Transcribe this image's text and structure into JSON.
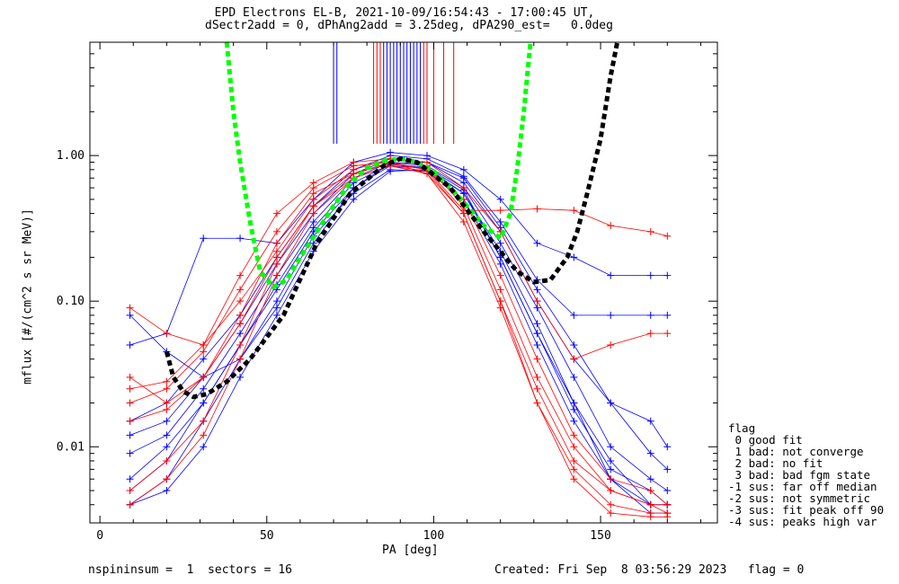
{
  "title": {
    "line1": "EPD Electrons EL-B, 2021-10-09/16:54:43 - 17:00:45 UT,",
    "line2": "dSectr2add = 0, dPhAng2add = 3.25deg, dPA290_est=   0.0deg"
  },
  "footer": {
    "left": "nspininsum =  1  sectors = 16",
    "right": "Created: Fri Sep  8 03:56:29 2023   flag = 0"
  },
  "legend": {
    "title": "flag",
    "items": [
      " 0 good fit",
      " 1 bad: not converge",
      " 2 bad: no fit",
      " 3 bad: bad fgm state",
      "-1 sus: far off median",
      "-2 sus: not symmetric",
      "-3 sus: fit peak off 90",
      "-4 sus: peaks high var"
    ]
  },
  "colors": {
    "series_a": "#0000ff",
    "series_b": "#ff0000",
    "fit_green": "#00ff00",
    "fit_black": "#000000"
  },
  "chart_data": {
    "type": "line",
    "xlabel": "PA [deg]",
    "ylabel": "mflux [#/(cm^2 s sr MeV)]",
    "xlim": [
      -3,
      185
    ],
    "ylim": [
      0.003,
      6.0
    ],
    "yscale": "log",
    "xticks": [
      0,
      50,
      100,
      150
    ],
    "xtick_labels": [
      "0",
      "50",
      "100",
      "150"
    ],
    "yticks": [
      0.01,
      0.1,
      1.0
    ],
    "ytick_labels": [
      "0.01",
      "0.10",
      "1.00"
    ],
    "grid": false,
    "pa_bins": [
      9,
      20,
      31,
      42,
      53,
      64,
      76,
      87,
      98,
      109,
      120,
      131,
      142,
      153,
      165,
      170
    ],
    "series": [
      {
        "color": "#0000ff",
        "values": [
          0.005,
          0.008,
          0.02,
          0.05,
          0.12,
          0.3,
          0.6,
          0.85,
          0.82,
          0.55,
          0.22,
          0.07,
          0.02,
          0.008,
          0.004,
          0.004
        ]
      },
      {
        "color": "#0000ff",
        "values": [
          0.009,
          0.012,
          0.025,
          0.06,
          0.15,
          0.35,
          0.7,
          0.9,
          0.85,
          0.6,
          0.25,
          0.09,
          0.03,
          0.01,
          0.006,
          0.005
        ]
      },
      {
        "color": "#0000ff",
        "values": [
          0.004,
          0.006,
          0.015,
          0.04,
          0.1,
          0.28,
          0.55,
          0.8,
          0.78,
          0.5,
          0.18,
          0.05,
          0.015,
          0.006,
          0.004,
          0.004
        ]
      },
      {
        "color": "#0000ff",
        "values": [
          0.08,
          0.045,
          0.03,
          0.04,
          0.09,
          0.25,
          0.6,
          0.88,
          0.9,
          0.65,
          0.3,
          0.1,
          0.04,
          0.02,
          0.015,
          0.01
        ]
      },
      {
        "color": "#0000ff",
        "values": [
          0.012,
          0.015,
          0.03,
          0.07,
          0.18,
          0.4,
          0.75,
          0.95,
          0.9,
          0.7,
          0.32,
          0.12,
          0.05,
          0.02,
          0.009,
          0.007
        ]
      },
      {
        "color": "#0000ff",
        "values": [
          0.006,
          0.01,
          0.02,
          0.05,
          0.13,
          0.32,
          0.65,
          0.87,
          0.83,
          0.58,
          0.2,
          0.06,
          0.018,
          0.007,
          0.005,
          0.004
        ]
      },
      {
        "color": "#0000ff",
        "values": [
          0.05,
          0.06,
          0.27,
          0.27,
          0.25,
          0.5,
          0.9,
          1.05,
          1.0,
          0.8,
          0.5,
          0.25,
          0.2,
          0.15,
          0.15,
          0.15
        ]
      },
      {
        "color": "#0000ff",
        "values": [
          0.004,
          0.005,
          0.01,
          0.03,
          0.08,
          0.22,
          0.5,
          0.78,
          0.8,
          0.55,
          0.2,
          0.06,
          0.02,
          0.006,
          0.0035,
          0.0035
        ]
      },
      {
        "color": "#0000ff",
        "values": [
          0.015,
          0.02,
          0.04,
          0.08,
          0.2,
          0.45,
          0.8,
          1.0,
          0.95,
          0.72,
          0.35,
          0.14,
          0.08,
          0.08,
          0.08,
          0.08
        ]
      },
      {
        "color": "#ff0000",
        "values": [
          0.025,
          0.028,
          0.05,
          0.1,
          0.22,
          0.5,
          0.8,
          0.95,
          0.85,
          0.45,
          0.12,
          0.03,
          0.01,
          0.005,
          0.004,
          0.004
        ]
      },
      {
        "color": "#ff0000",
        "values": [
          0.02,
          0.025,
          0.045,
          0.12,
          0.3,
          0.6,
          0.85,
          0.9,
          0.75,
          0.35,
          0.09,
          0.02,
          0.007,
          0.004,
          0.0035,
          0.0035
        ]
      },
      {
        "color": "#ff0000",
        "values": [
          0.03,
          0.02,
          0.03,
          0.08,
          0.25,
          0.55,
          0.75,
          0.88,
          0.8,
          0.5,
          0.15,
          0.04,
          0.012,
          0.006,
          0.005,
          0.004
        ]
      },
      {
        "color": "#ff0000",
        "values": [
          0.015,
          0.018,
          0.03,
          0.07,
          0.2,
          0.45,
          0.7,
          0.85,
          0.78,
          0.4,
          0.1,
          0.025,
          0.008,
          0.005,
          0.004,
          0.0035
        ]
      },
      {
        "color": "#ff0000",
        "values": [
          0.09,
          0.06,
          0.05,
          0.15,
          0.4,
          0.65,
          0.9,
          0.95,
          0.9,
          0.6,
          0.3,
          0.1,
          0.04,
          0.05,
          0.06,
          0.06
        ]
      },
      {
        "color": "#ff0000",
        "values": [
          0.005,
          0.008,
          0.015,
          0.05,
          0.18,
          0.45,
          0.75,
          0.9,
          0.8,
          0.42,
          0.42,
          0.43,
          0.42,
          0.33,
          0.3,
          0.28
        ]
      },
      {
        "color": "#ff0000",
        "values": [
          0.004,
          0.006,
          0.012,
          0.04,
          0.15,
          0.4,
          0.7,
          0.85,
          0.75,
          0.4,
          0.1,
          0.02,
          0.006,
          0.0035,
          0.0033,
          0.0033
        ]
      }
    ],
    "fit_curves": [
      {
        "color": "#00ff00",
        "style": "dashed",
        "x": [
          38,
          40,
          42,
          45,
          48,
          52,
          56,
          60,
          65,
          70,
          75,
          80,
          85,
          90,
          95,
          100,
          105,
          110,
          115,
          120,
          123,
          125,
          127,
          129
        ],
        "y": [
          6.0,
          2.0,
          0.9,
          0.35,
          0.16,
          0.125,
          0.14,
          0.2,
          0.3,
          0.45,
          0.65,
          0.82,
          0.92,
          0.95,
          0.9,
          0.78,
          0.6,
          0.45,
          0.33,
          0.27,
          0.4,
          0.8,
          2.0,
          6.0
        ]
      },
      {
        "color": "#000000",
        "style": "dashed",
        "x": [
          20,
          22,
          25,
          28,
          32,
          38,
          45,
          55,
          65,
          75,
          85,
          90,
          95,
          105,
          115,
          125,
          130,
          135,
          140,
          143,
          146,
          150,
          153,
          155
        ],
        "y": [
          0.045,
          0.03,
          0.024,
          0.022,
          0.023,
          0.028,
          0.04,
          0.08,
          0.25,
          0.55,
          0.85,
          0.95,
          0.9,
          0.6,
          0.3,
          0.16,
          0.135,
          0.14,
          0.2,
          0.3,
          0.55,
          1.3,
          3.5,
          6.0
        ]
      }
    ],
    "vertical_marks": [
      {
        "color": "#0000ff",
        "x": [
          70,
          71,
          85,
          86,
          87,
          88,
          89,
          90,
          91,
          92,
          93,
          94,
          95,
          96
        ]
      },
      {
        "color": "#ff0000",
        "x": [
          82,
          83,
          84,
          97,
          98,
          100,
          103,
          106
        ]
      }
    ]
  }
}
